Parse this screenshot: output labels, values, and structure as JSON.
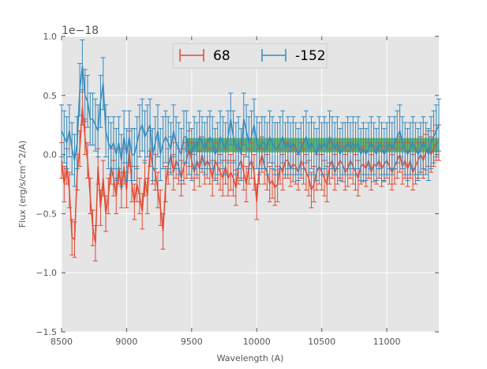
{
  "chart_data": {
    "type": "line",
    "title": "",
    "xlabel": "Wavelength (A)",
    "ylabel": "Flux (erg/s/cm^2/A)",
    "y_offset_label": "1e−18",
    "xlim": [
      8500,
      11400
    ],
    "ylim": [
      -1.5,
      1.0
    ],
    "x_ticks": [
      8500,
      9000,
      9500,
      10000,
      10500,
      11000
    ],
    "x_tick_labels": [
      "8500",
      "9000",
      "9500",
      "10000",
      "10500",
      "11000"
    ],
    "y_ticks": [
      -1.5,
      -1.0,
      -0.5,
      0.0,
      0.5,
      1.0
    ],
    "y_tick_labels": [
      "−1.5",
      "−1.0",
      "−0.5",
      "0.0",
      "0.5",
      "1.0"
    ],
    "grid": true,
    "legend_position": "top-center",
    "band": {
      "x": [
        9450,
        11400
      ],
      "y": [
        0.02,
        0.14
      ],
      "color": "#2ca02c"
    },
    "x": [
      8500,
      8520,
      8540,
      8560,
      8580,
      8600,
      8620,
      8640,
      8660,
      8680,
      8700,
      8720,
      8740,
      8760,
      8780,
      8800,
      8820,
      8840,
      8860,
      8880,
      8900,
      8920,
      8940,
      8960,
      8980,
      9000,
      9020,
      9040,
      9060,
      9080,
      9100,
      9120,
      9140,
      9160,
      9180,
      9200,
      9220,
      9240,
      9260,
      9280,
      9300,
      9320,
      9340,
      9360,
      9380,
      9400,
      9420,
      9440,
      9460,
      9480,
      9500,
      9520,
      9540,
      9560,
      9580,
      9600,
      9620,
      9640,
      9660,
      9680,
      9700,
      9720,
      9740,
      9760,
      9780,
      9800,
      9820,
      9840,
      9860,
      9880,
      9900,
      9920,
      9940,
      9960,
      9980,
      10000,
      10020,
      10040,
      10060,
      10080,
      10100,
      10120,
      10140,
      10160,
      10180,
      10200,
      10220,
      10240,
      10260,
      10280,
      10300,
      10320,
      10340,
      10360,
      10380,
      10400,
      10420,
      10440,
      10460,
      10480,
      10500,
      10520,
      10540,
      10560,
      10580,
      10600,
      10620,
      10640,
      10660,
      10680,
      10700,
      10720,
      10740,
      10760,
      10780,
      10800,
      10820,
      10840,
      10860,
      10880,
      10900,
      10920,
      10940,
      10960,
      10980,
      11000,
      11020,
      11040,
      11060,
      11080,
      11100,
      11120,
      11140,
      11160,
      11180,
      11200,
      11220,
      11240,
      11260,
      11280,
      11300,
      11320,
      11340,
      11360,
      11380,
      11400
    ],
    "series": [
      {
        "name": "68",
        "color": "#e24a33",
        "err": 0.15,
        "values": [
          -0.05,
          -0.25,
          -0.1,
          -0.3,
          -0.7,
          -0.72,
          -0.15,
          0.05,
          0.4,
          0.15,
          -0.05,
          -0.35,
          -0.62,
          -0.75,
          -0.1,
          -0.45,
          -0.2,
          -0.5,
          -0.35,
          -0.1,
          -0.2,
          -0.35,
          -0.1,
          -0.3,
          -0.1,
          -0.3,
          0.05,
          -0.25,
          -0.4,
          -0.25,
          -0.35,
          -0.48,
          -0.2,
          -0.35,
          0.05,
          -0.1,
          -0.15,
          -0.3,
          -0.45,
          -0.65,
          -0.25,
          -0.1,
          0.0,
          -0.15,
          -0.05,
          -0.1,
          -0.2,
          -0.1,
          -0.05,
          0.05,
          -0.05,
          -0.15,
          -0.05,
          -0.12,
          0.0,
          -0.1,
          -0.05,
          -0.1,
          -0.2,
          -0.05,
          -0.1,
          -0.15,
          -0.2,
          -0.1,
          -0.2,
          -0.15,
          -0.2,
          -0.28,
          -0.1,
          -0.05,
          -0.15,
          -0.25,
          -0.1,
          -0.05,
          -0.15,
          -0.4,
          -0.1,
          0.0,
          -0.1,
          -0.15,
          -0.25,
          -0.22,
          -0.28,
          -0.25,
          -0.1,
          -0.15,
          -0.05,
          -0.05,
          -0.12,
          -0.08,
          -0.1,
          -0.15,
          -0.05,
          -0.1,
          -0.15,
          -0.2,
          -0.3,
          -0.25,
          -0.15,
          -0.1,
          -0.15,
          -0.2,
          -0.25,
          -0.1,
          -0.05,
          -0.15,
          -0.1,
          -0.05,
          -0.08,
          -0.15,
          -0.12,
          -0.05,
          -0.1,
          -0.15,
          -0.2,
          -0.1,
          -0.08,
          -0.12,
          -0.05,
          -0.15,
          -0.08,
          -0.1,
          -0.05,
          -0.12,
          -0.08,
          -0.05,
          -0.1,
          -0.15,
          -0.1,
          -0.05,
          0.0,
          -0.1,
          -0.05,
          -0.12,
          -0.05,
          -0.15,
          -0.1,
          -0.05,
          0.0,
          -0.05,
          0.02,
          0.05,
          0.0,
          0.05,
          0.1,
          0.1
        ]
      },
      {
        "name": "-152",
        "color": "#348abd",
        "err": 0.22,
        "values": [
          0.2,
          0.15,
          0.1,
          0.2,
          0.05,
          -0.05,
          0.1,
          0.55,
          0.75,
          0.5,
          0.45,
          0.3,
          0.3,
          0.25,
          0.2,
          0.45,
          0.6,
          0.2,
          0.1,
          0.05,
          0.1,
          0.0,
          0.1,
          -0.05,
          0.15,
          0.0,
          0.15,
          0.0,
          0.0,
          0.1,
          0.2,
          0.25,
          0.15,
          0.2,
          0.25,
          0.0,
          0.1,
          0.2,
          0.0,
          0.1,
          0.15,
          0.1,
          0.05,
          0.2,
          0.1,
          0.05,
          0.0,
          0.15,
          0.15,
          0.05,
          0.0,
          0.1,
          0.05,
          0.15,
          0.1,
          0.05,
          0.1,
          0.15,
          0.1,
          0.0,
          0.05,
          0.15,
          0.1,
          0.05,
          0.15,
          0.3,
          0.15,
          0.05,
          0.1,
          0.0,
          0.3,
          0.2,
          0.1,
          0.15,
          0.25,
          0.1,
          0.05,
          0.1,
          0.1,
          0.05,
          0.15,
          0.1,
          0.05,
          0.05,
          0.1,
          0.15,
          0.05,
          0.1,
          0.05,
          0.1,
          0.05,
          0.0,
          0.05,
          0.1,
          0.15,
          0.05,
          0.1,
          0.05,
          0.0,
          0.1,
          0.05,
          0.1,
          0.05,
          0.15,
          0.1,
          0.05,
          0.1,
          0.0,
          0.05,
          0.05,
          0.1,
          0.05,
          0.1,
          0.05,
          0.1,
          0.0,
          0.05,
          0.0,
          0.05,
          0.1,
          0.05,
          0.0,
          0.1,
          0.05,
          0.0,
          0.05,
          0.1,
          0.05,
          0.1,
          0.15,
          0.2,
          0.1,
          0.05,
          0.0,
          0.05,
          0.1,
          0.05,
          0.0,
          0.05,
          0.1,
          0.05,
          0.0,
          0.1,
          0.15,
          0.2,
          0.25
        ]
      }
    ]
  }
}
